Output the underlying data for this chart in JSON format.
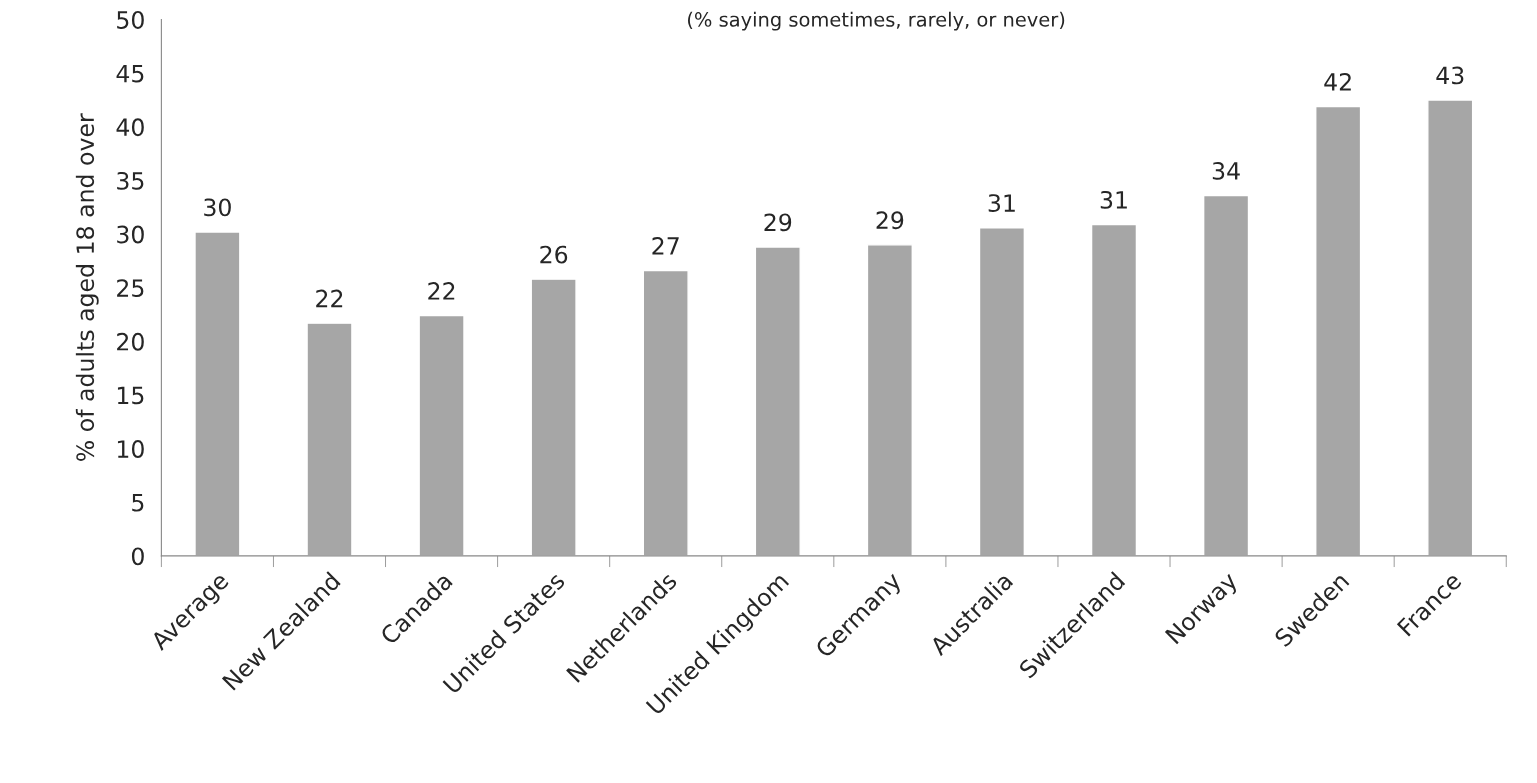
{
  "chart_data": {
    "type": "bar",
    "subtitle": "(% saying sometimes, rarely, or never)",
    "ylabel": "% of adults aged 18 and over",
    "categories": [
      "Average",
      "New Zealand",
      "Canada",
      "United States",
      "Netherlands",
      "United Kingdom",
      "Germany",
      "Australia",
      "Switzerland",
      "Norway",
      "Sweden",
      "France"
    ],
    "values": [
      30.2,
      21.7,
      22.4,
      25.8,
      26.6,
      28.8,
      29.0,
      30.6,
      30.9,
      33.6,
      41.9,
      42.5
    ],
    "value_labels": [
      "30",
      "22",
      "22",
      "26",
      "27",
      "29",
      "29",
      "31",
      "31",
      "34",
      "42",
      "43"
    ],
    "color": "#a6a6a6",
    "ylim": [
      0,
      50
    ],
    "yticks": [
      0,
      5,
      10,
      15,
      20,
      25,
      30,
      35,
      40,
      45,
      50
    ],
    "grid": false
  }
}
